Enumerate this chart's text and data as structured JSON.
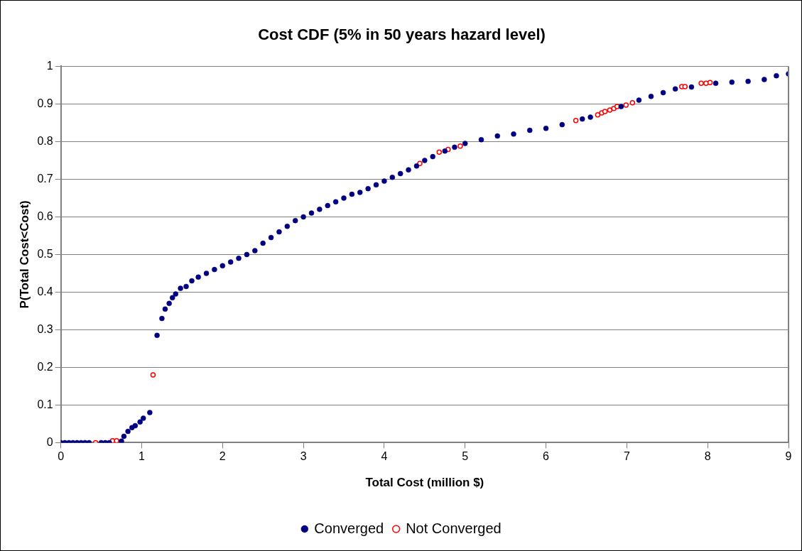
{
  "chart_data": {
    "type": "scatter",
    "title": "Cost CDF (5% in 50 years hazard level)",
    "xlabel": "Total Cost (million $)",
    "ylabel": "P(Total Cost<Cost)",
    "xlim": [
      0,
      9
    ],
    "xticks": [
      0,
      1,
      2,
      3,
      4,
      5,
      6,
      7,
      8,
      9
    ],
    "ylim": [
      0,
      1
    ],
    "yticks": [
      0,
      0.1,
      0.2,
      0.3,
      0.4,
      0.5,
      0.6,
      0.7,
      0.8,
      0.9,
      1
    ],
    "grid": "y",
    "legend": "bottom",
    "marker": "circle",
    "series": [
      {
        "name": "Converged",
        "color": "#000080",
        "x": [
          0,
          0.05,
          0.1,
          0.15,
          0.2,
          0.25,
          0.3,
          0.35,
          0.5,
          0.55,
          0.6,
          0.75,
          0.78,
          0.83,
          0.88,
          0.92,
          0.98,
          1.02,
          1.1,
          1.19,
          1.25,
          1.29,
          1.34,
          1.38,
          1.42,
          1.48,
          1.55,
          1.62,
          1.7,
          1.8,
          1.9,
          2.0,
          2.1,
          2.2,
          2.3,
          2.4,
          2.5,
          2.6,
          2.7,
          2.8,
          2.9,
          3.0,
          3.1,
          3.2,
          3.3,
          3.4,
          3.5,
          3.6,
          3.7,
          3.8,
          3.9,
          4.0,
          4.1,
          4.2,
          4.3,
          4.4,
          4.5,
          4.6,
          4.75,
          4.87,
          5.0,
          5.2,
          5.4,
          5.6,
          5.8,
          6.0,
          6.2,
          6.45,
          6.55,
          6.93,
          7.15,
          7.3,
          7.45,
          7.6,
          7.8,
          8.1,
          8.3,
          8.5,
          8.7,
          8.85,
          9.0
        ],
        "values": [
          0,
          0,
          0,
          0,
          0,
          0,
          0,
          0,
          0,
          0,
          0,
          0.004,
          0.017,
          0.03,
          0.04,
          0.045,
          0.055,
          0.065,
          0.08,
          0.285,
          0.33,
          0.355,
          0.37,
          0.385,
          0.395,
          0.41,
          0.415,
          0.43,
          0.44,
          0.45,
          0.46,
          0.47,
          0.48,
          0.49,
          0.5,
          0.51,
          0.53,
          0.545,
          0.56,
          0.575,
          0.59,
          0.6,
          0.61,
          0.62,
          0.63,
          0.64,
          0.65,
          0.66,
          0.665,
          0.675,
          0.685,
          0.695,
          0.705,
          0.715,
          0.725,
          0.735,
          0.75,
          0.76,
          0.775,
          0.785,
          0.795,
          0.805,
          0.815,
          0.82,
          0.83,
          0.835,
          0.845,
          0.86,
          0.865,
          0.893,
          0.91,
          0.92,
          0.93,
          0.94,
          0.945,
          0.955,
          0.958,
          0.96,
          0.965,
          0.975,
          0.98
        ]
      },
      {
        "name": "Not Converged",
        "color": "#ff0000",
        "x": [
          0.43,
          0.64,
          0.69,
          1.14,
          4.44,
          4.68,
          4.79,
          4.94,
          6.37,
          6.64,
          6.69,
          6.73,
          6.79,
          6.84,
          6.88,
          6.99,
          7.07,
          7.68,
          7.72,
          7.92,
          7.98,
          8.03
        ],
        "values": [
          0,
          0.005,
          0.005,
          0.18,
          0.742,
          0.772,
          0.779,
          0.788,
          0.856,
          0.871,
          0.876,
          0.88,
          0.884,
          0.888,
          0.893,
          0.897,
          0.903,
          0.946,
          0.946,
          0.955,
          0.955,
          0.957
        ]
      }
    ]
  }
}
